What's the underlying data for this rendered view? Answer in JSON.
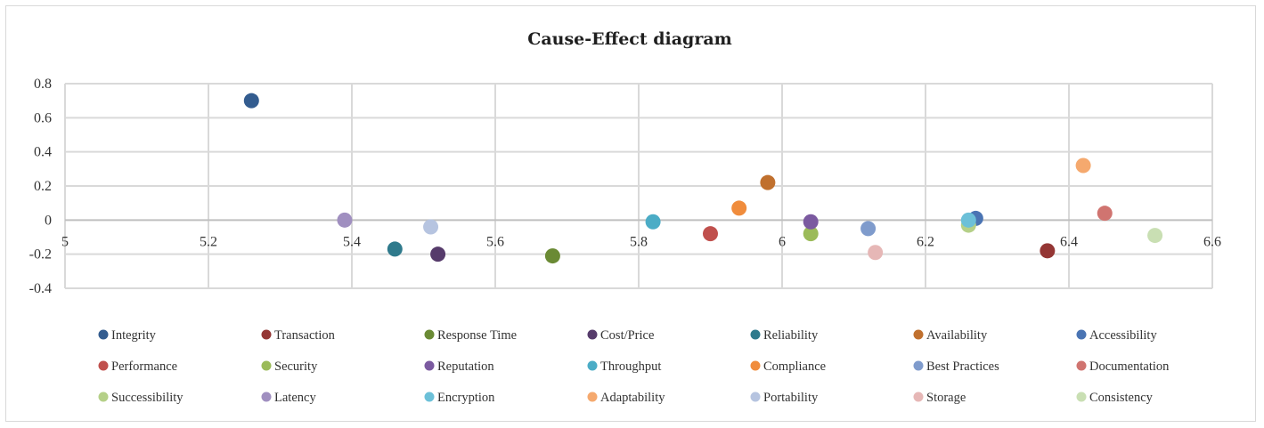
{
  "chart_data": {
    "type": "scatter",
    "title": "Cause-Effect diagram",
    "xlabel": "",
    "ylabel": "",
    "xlim": [
      5,
      6.6
    ],
    "ylim": [
      -0.4,
      0.8
    ],
    "x_ticks": [
      "5",
      "5.2",
      "5.4",
      "5.6",
      "5.8",
      "6",
      "6.2",
      "6.4",
      "6.6"
    ],
    "y_ticks": [
      "0.8",
      "0.6",
      "0.4",
      "0.2",
      "0",
      "-0.2",
      "-0.4"
    ],
    "grid": true,
    "legend_position": "bottom",
    "series": [
      {
        "name": "Integrity",
        "x": 5.26,
        "y": 0.7,
        "color": "#335c8f"
      },
      {
        "name": "Transaction",
        "x": 6.37,
        "y": -0.18,
        "color": "#943634"
      },
      {
        "name": "Response Time",
        "x": 5.68,
        "y": -0.21,
        "color": "#6a8a34"
      },
      {
        "name": "Cost/Price",
        "x": 5.52,
        "y": -0.2,
        "color": "#563b6b"
      },
      {
        "name": "Reliability",
        "x": 5.46,
        "y": -0.17,
        "color": "#2f7a8c"
      },
      {
        "name": "Availability",
        "x": 5.98,
        "y": 0.22,
        "color": "#c0702e"
      },
      {
        "name": "Accessibility",
        "x": 6.27,
        "y": 0.01,
        "color": "#4a74b3"
      },
      {
        "name": "Performance",
        "x": 5.9,
        "y": -0.08,
        "color": "#c0504d"
      },
      {
        "name": "Security",
        "x": 6.04,
        "y": -0.08,
        "color": "#9bbb59"
      },
      {
        "name": "Reputation",
        "x": 6.04,
        "y": -0.01,
        "color": "#7b5aa0"
      },
      {
        "name": "Throughput",
        "x": 5.82,
        "y": -0.01,
        "color": "#4bacc6"
      },
      {
        "name": "Compliance",
        "x": 5.94,
        "y": 0.07,
        "color": "#f08c3c"
      },
      {
        "name": "Best Practices",
        "x": 6.12,
        "y": -0.05,
        "color": "#7f9bcc"
      },
      {
        "name": "Documentation",
        "x": 6.45,
        "y": 0.04,
        "color": "#d07470"
      },
      {
        "name": "Successibility",
        "x": 6.26,
        "y": -0.03,
        "color": "#b5d088"
      },
      {
        "name": "Latency",
        "x": 5.39,
        "y": 0.0,
        "color": "#a08fc0"
      },
      {
        "name": "Encryption",
        "x": 6.26,
        "y": 0.0,
        "color": "#6cc0d8"
      },
      {
        "name": "Adaptability",
        "x": 6.42,
        "y": 0.32,
        "color": "#f5a96e"
      },
      {
        "name": "Portability",
        "x": 5.51,
        "y": -0.04,
        "color": "#b6c4e0"
      },
      {
        "name": "Storage",
        "x": 6.13,
        "y": -0.19,
        "color": "#e6b7b6"
      },
      {
        "name": "Consistency",
        "x": 6.52,
        "y": -0.09,
        "color": "#c9dfb3"
      }
    ]
  }
}
